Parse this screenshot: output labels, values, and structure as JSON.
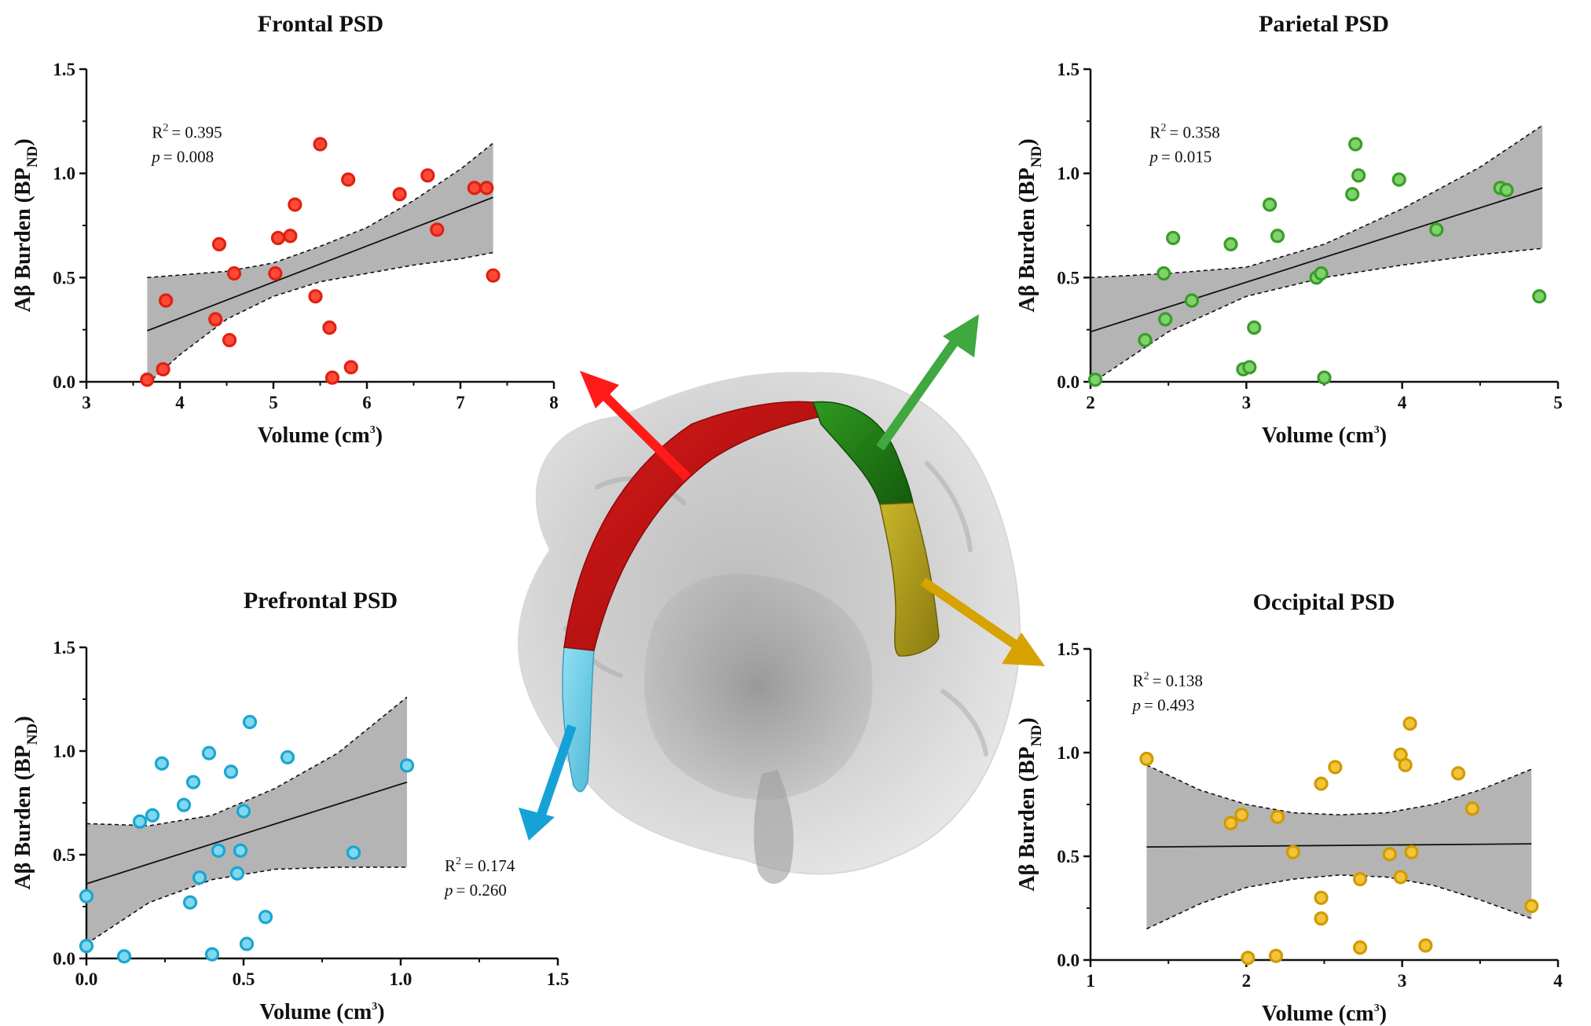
{
  "figure": {
    "brain_image": "brain-corpus-callosum-segmentation"
  },
  "chart_data": [
    {
      "id": "frontal",
      "type": "scatter",
      "title": "Frontal PSD",
      "xlabel": "Volume (cm",
      "xlabel_sup": "3",
      "xlabel_end": ")",
      "ylabel": "Aβ Burden (BP",
      "ylabel_sub": "ND",
      "ylabel_end": ")",
      "xlim": [
        3,
        8
      ],
      "ylim": [
        0,
        1.5
      ],
      "xticks": [
        "3",
        "4",
        "5",
        "6",
        "7",
        "8"
      ],
      "xtick_values": [
        3,
        4,
        5,
        6,
        7,
        8
      ],
      "yticks": [
        "0.0",
        "0.5",
        "1.0",
        "1.5"
      ],
      "ytick_values": [
        0,
        0.5,
        1.0,
        1.5
      ],
      "color": "#ff4a3a",
      "stroke": "#e0210f",
      "stat_r2": "= 0.395",
      "stat_p": "= 0.008",
      "stat_pos": [
        3.7,
        1.17
      ],
      "points": [
        [
          3.65,
          0.01
        ],
        [
          3.82,
          0.06
        ],
        [
          3.85,
          0.39
        ],
        [
          4.38,
          0.3
        ],
        [
          4.42,
          0.66
        ],
        [
          4.53,
          0.2
        ],
        [
          4.58,
          0.52
        ],
        [
          5.02,
          0.52
        ],
        [
          5.05,
          0.69
        ],
        [
          5.18,
          0.7
        ],
        [
          5.23,
          0.85
        ],
        [
          5.45,
          0.41
        ],
        [
          5.5,
          1.14
        ],
        [
          5.6,
          0.26
        ],
        [
          5.63,
          0.02
        ],
        [
          5.8,
          0.97
        ],
        [
          5.83,
          0.07
        ],
        [
          6.35,
          0.9
        ],
        [
          6.65,
          0.99
        ],
        [
          6.75,
          0.73
        ],
        [
          7.15,
          0.93
        ],
        [
          7.28,
          0.93
        ],
        [
          7.35,
          0.51
        ]
      ],
      "fit": [
        [
          3.65,
          0.245
        ],
        [
          7.35,
          0.885
        ]
      ],
      "ci_upper": [
        [
          3.65,
          0.5
        ],
        [
          4.5,
          0.53
        ],
        [
          5.0,
          0.57
        ],
        [
          5.5,
          0.65
        ],
        [
          6.0,
          0.74
        ],
        [
          6.5,
          0.87
        ],
        [
          7.0,
          1.02
        ],
        [
          7.35,
          1.145
        ]
      ],
      "ci_lower": [
        [
          3.65,
          -0.01
        ],
        [
          4.0,
          0.13
        ],
        [
          4.5,
          0.3
        ],
        [
          5.0,
          0.41
        ],
        [
          5.5,
          0.48
        ],
        [
          6.0,
          0.52
        ],
        [
          6.5,
          0.56
        ],
        [
          7.0,
          0.59
        ],
        [
          7.35,
          0.62
        ]
      ]
    },
    {
      "id": "parietal",
      "type": "scatter",
      "title": "Parietal PSD",
      "xlabel": "Volume (cm",
      "xlabel_sup": "3",
      "xlabel_end": ")",
      "ylabel": "Aβ Burden (BP",
      "ylabel_sub": "ND",
      "ylabel_end": ")",
      "xlim": [
        2,
        5
      ],
      "ylim": [
        0,
        1.5
      ],
      "xticks": [
        "2",
        "3",
        "4",
        "5"
      ],
      "xtick_values": [
        2,
        3,
        4,
        5
      ],
      "yticks": [
        "0.0",
        "0.5",
        "1.0",
        "1.5"
      ],
      "ytick_values": [
        0,
        0.5,
        1.0,
        1.5
      ],
      "color": "#7fd36b",
      "stroke": "#3a9c2a",
      "stat_r2": "= 0.358",
      "stat_p": "= 0.015",
      "stat_pos": [
        2.38,
        1.17
      ],
      "points": [
        [
          2.03,
          0.01
        ],
        [
          2.35,
          0.2
        ],
        [
          2.47,
          0.52
        ],
        [
          2.48,
          0.3
        ],
        [
          2.53,
          0.69
        ],
        [
          2.65,
          0.39
        ],
        [
          2.9,
          0.66
        ],
        [
          2.98,
          0.06
        ],
        [
          3.02,
          0.07
        ],
        [
          3.05,
          0.26
        ],
        [
          3.15,
          0.85
        ],
        [
          3.2,
          0.7
        ],
        [
          3.45,
          0.5
        ],
        [
          3.48,
          0.52
        ],
        [
          3.5,
          0.02
        ],
        [
          3.68,
          0.9
        ],
        [
          3.7,
          1.14
        ],
        [
          3.72,
          0.99
        ],
        [
          3.98,
          0.97
        ],
        [
          4.22,
          0.73
        ],
        [
          4.63,
          0.93
        ],
        [
          4.67,
          0.92
        ],
        [
          4.88,
          0.41
        ]
      ],
      "fit": [
        [
          2.0,
          0.24
        ],
        [
          4.9,
          0.93
        ]
      ],
      "ci_upper": [
        [
          2.0,
          0.5
        ],
        [
          2.5,
          0.52
        ],
        [
          3.0,
          0.55
        ],
        [
          3.5,
          0.66
        ],
        [
          4.0,
          0.83
        ],
        [
          4.5,
          1.03
        ],
        [
          4.9,
          1.23
        ]
      ],
      "ci_lower": [
        [
          2.0,
          -0.01
        ],
        [
          2.5,
          0.24
        ],
        [
          3.0,
          0.41
        ],
        [
          3.5,
          0.5
        ],
        [
          4.0,
          0.56
        ],
        [
          4.5,
          0.61
        ],
        [
          4.9,
          0.64
        ]
      ]
    },
    {
      "id": "prefrontal",
      "type": "scatter",
      "title": "Prefrontal PSD",
      "xlabel": "Volume (cm",
      "xlabel_sup": "3",
      "xlabel_end": ")",
      "ylabel": "Aβ Burden (BP",
      "ylabel_sub": "ND",
      "ylabel_end": ")",
      "xlim": [
        0,
        1.5
      ],
      "ylim": [
        0,
        1.5
      ],
      "xticks": [
        "0.0",
        "0.5",
        "1.0",
        "1.5"
      ],
      "xtick_values": [
        0,
        0.5,
        1.0,
        1.5
      ],
      "yticks": [
        "0.0",
        "0.5",
        "1.0",
        "1.5"
      ],
      "ytick_values": [
        0,
        0.5,
        1.0,
        1.5
      ],
      "color": "#7fd8ef",
      "stroke": "#1aa6d0",
      "stat_r2": "= 0.174",
      "stat_p": "= 0.260",
      "stat_pos": [
        1.14,
        0.42
      ],
      "points": [
        [
          0.0,
          0.06
        ],
        [
          0.0,
          0.3
        ],
        [
          0.12,
          0.01
        ],
        [
          0.17,
          0.66
        ],
        [
          0.21,
          0.69
        ],
        [
          0.24,
          0.94
        ],
        [
          0.31,
          0.74
        ],
        [
          0.33,
          0.27
        ],
        [
          0.34,
          0.85
        ],
        [
          0.36,
          0.39
        ],
        [
          0.39,
          0.99
        ],
        [
          0.4,
          0.02
        ],
        [
          0.42,
          0.52
        ],
        [
          0.46,
          0.9
        ],
        [
          0.48,
          0.41
        ],
        [
          0.49,
          0.52
        ],
        [
          0.5,
          0.71
        ],
        [
          0.51,
          0.07
        ],
        [
          0.52,
          1.14
        ],
        [
          0.57,
          0.2
        ],
        [
          0.64,
          0.97
        ],
        [
          0.85,
          0.51
        ],
        [
          1.02,
          0.93
        ]
      ],
      "fit": [
        [
          0.0,
          0.36
        ],
        [
          1.02,
          0.85
        ]
      ],
      "ci_upper": [
        [
          0.0,
          0.65
        ],
        [
          0.2,
          0.64
        ],
        [
          0.4,
          0.69
        ],
        [
          0.6,
          0.82
        ],
        [
          0.8,
          0.99
        ],
        [
          1.02,
          1.26
        ]
      ],
      "ci_lower": [
        [
          0.0,
          0.07
        ],
        [
          0.2,
          0.27
        ],
        [
          0.4,
          0.38
        ],
        [
          0.6,
          0.43
        ],
        [
          0.8,
          0.44
        ],
        [
          1.02,
          0.44
        ]
      ]
    },
    {
      "id": "occipital",
      "type": "scatter",
      "title": "Occipital PSD",
      "xlabel": "Volume (cm",
      "xlabel_sup": "3",
      "xlabel_end": ")",
      "ylabel": "Aβ Burden (BP",
      "ylabel_sub": "ND",
      "ylabel_end": ")",
      "xlim": [
        1,
        4
      ],
      "ylim": [
        0,
        1.5
      ],
      "xticks": [
        "1",
        "2",
        "3",
        "4"
      ],
      "xtick_values": [
        1,
        2,
        3,
        4
      ],
      "yticks": [
        "0.0",
        "0.5",
        "1.0",
        "1.5"
      ],
      "ytick_values": [
        0,
        0.5,
        1.0,
        1.5
      ],
      "color": "#f1c43a",
      "stroke": "#d19a00",
      "stat_r2": "= 0.138",
      "stat_p": "= 0.493",
      "stat_pos": [
        1.27,
        1.32
      ],
      "points": [
        [
          1.36,
          0.97
        ],
        [
          1.9,
          0.66
        ],
        [
          1.97,
          0.7
        ],
        [
          2.01,
          0.01
        ],
        [
          2.19,
          0.02
        ],
        [
          2.2,
          0.69
        ],
        [
          2.3,
          0.52
        ],
        [
          2.48,
          0.3
        ],
        [
          2.48,
          0.2
        ],
        [
          2.48,
          0.85
        ],
        [
          2.57,
          0.93
        ],
        [
          2.73,
          0.06
        ],
        [
          2.73,
          0.39
        ],
        [
          2.92,
          0.51
        ],
        [
          2.99,
          0.99
        ],
        [
          2.99,
          0.4
        ],
        [
          3.02,
          0.94
        ],
        [
          3.05,
          1.14
        ],
        [
          3.06,
          0.52
        ],
        [
          3.15,
          0.07
        ],
        [
          3.36,
          0.9
        ],
        [
          3.45,
          0.73
        ],
        [
          3.83,
          0.26
        ]
      ],
      "fit": [
        [
          1.36,
          0.545
        ],
        [
          3.83,
          0.56
        ]
      ],
      "ci_upper": [
        [
          1.36,
          0.94
        ],
        [
          1.7,
          0.82
        ],
        [
          2.0,
          0.75
        ],
        [
          2.3,
          0.71
        ],
        [
          2.6,
          0.7
        ],
        [
          2.9,
          0.71
        ],
        [
          3.2,
          0.75
        ],
        [
          3.5,
          0.82
        ],
        [
          3.83,
          0.92
        ]
      ],
      "ci_lower": [
        [
          1.36,
          0.15
        ],
        [
          1.7,
          0.27
        ],
        [
          2.0,
          0.35
        ],
        [
          2.3,
          0.39
        ],
        [
          2.6,
          0.41
        ],
        [
          2.9,
          0.4
        ],
        [
          3.2,
          0.36
        ],
        [
          3.5,
          0.29
        ],
        [
          3.83,
          0.2
        ]
      ]
    }
  ]
}
